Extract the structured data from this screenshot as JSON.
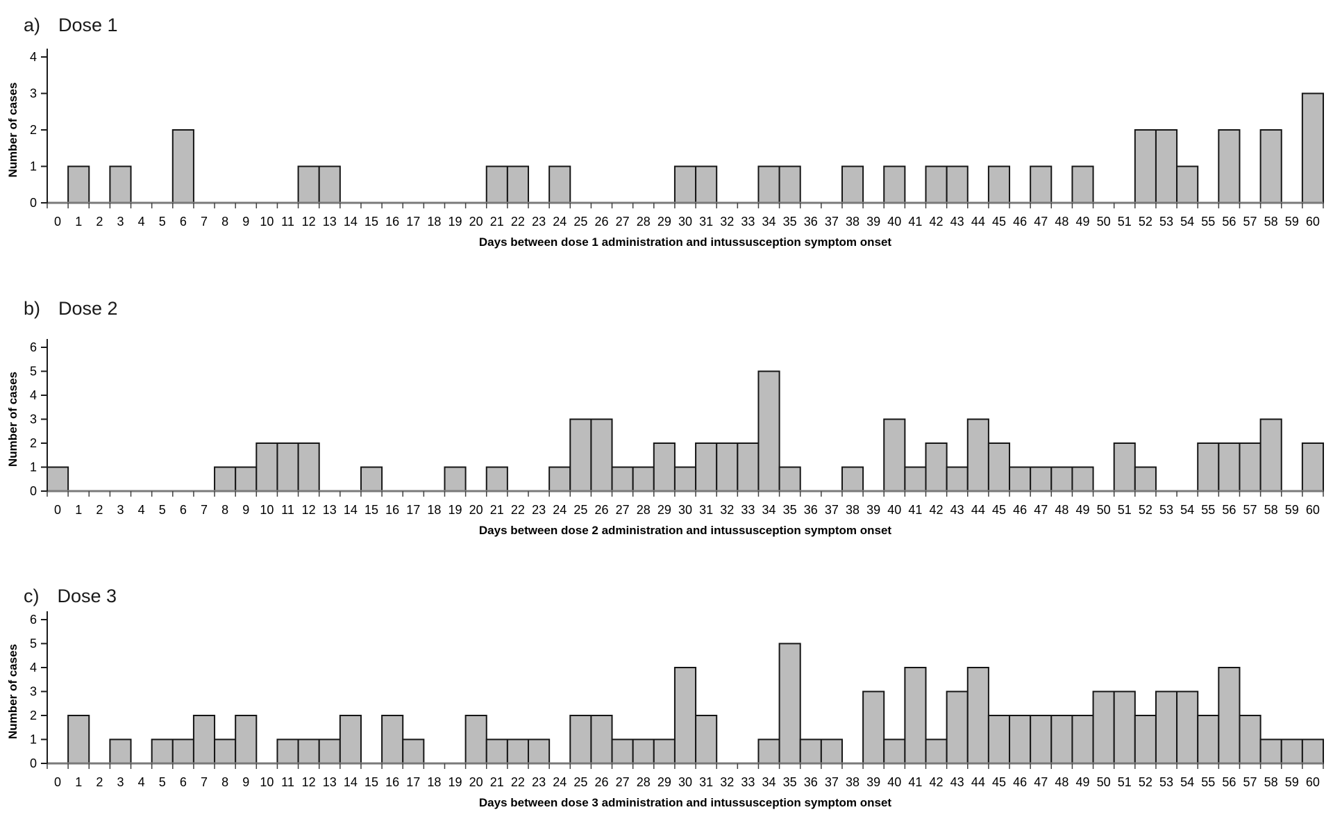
{
  "colors": {
    "bar_fill": "#bcbcbc",
    "bar_stroke": "#151515",
    "axis": "#1a1a1a",
    "baseline": "#7a7a7a",
    "x_tick": "#404040"
  },
  "chart_data": [
    {
      "type": "bar",
      "panel_label": "a)",
      "title": "Dose 1",
      "ylabel": "Number of cases",
      "xlabel": "Days between dose 1 administration and intussusception symptom onset",
      "ylim": [
        0,
        4
      ],
      "grid": false,
      "legend": "none",
      "categories": [
        0,
        1,
        2,
        3,
        4,
        5,
        6,
        7,
        8,
        9,
        10,
        11,
        12,
        13,
        14,
        15,
        16,
        17,
        18,
        19,
        20,
        21,
        22,
        23,
        24,
        25,
        26,
        27,
        28,
        29,
        30,
        31,
        32,
        33,
        34,
        35,
        36,
        37,
        38,
        39,
        40,
        41,
        42,
        43,
        44,
        45,
        46,
        47,
        48,
        49,
        50,
        51,
        52,
        53,
        54,
        55,
        56,
        57,
        58,
        59,
        60
      ],
      "values": [
        0,
        1,
        0,
        1,
        0,
        0,
        2,
        0,
        0,
        0,
        0,
        0,
        1,
        1,
        0,
        0,
        0,
        0,
        0,
        0,
        0,
        1,
        1,
        0,
        1,
        0,
        0,
        0,
        0,
        0,
        1,
        1,
        0,
        0,
        1,
        1,
        0,
        0,
        1,
        0,
        1,
        0,
        1,
        1,
        0,
        1,
        0,
        1,
        0,
        1,
        0,
        0,
        2,
        2,
        1,
        0,
        2,
        0,
        2,
        0,
        3
      ]
    },
    {
      "type": "bar",
      "panel_label": "b)",
      "title": "Dose 2",
      "ylabel": "Number of cases",
      "xlabel": "Days between dose 2 administration and intussusception symptom onset",
      "ylim": [
        0,
        6
      ],
      "grid": false,
      "legend": "none",
      "categories": [
        0,
        1,
        2,
        3,
        4,
        5,
        6,
        7,
        8,
        9,
        10,
        11,
        12,
        13,
        14,
        15,
        16,
        17,
        18,
        19,
        20,
        21,
        22,
        23,
        24,
        25,
        26,
        27,
        28,
        29,
        30,
        31,
        32,
        33,
        34,
        35,
        36,
        37,
        38,
        39,
        40,
        41,
        42,
        43,
        44,
        45,
        46,
        47,
        48,
        49,
        50,
        51,
        52,
        53,
        54,
        55,
        56,
        57,
        58,
        59,
        60
      ],
      "values": [
        1,
        0,
        0,
        0,
        0,
        0,
        0,
        0,
        1,
        1,
        2,
        2,
        2,
        0,
        0,
        1,
        0,
        0,
        0,
        1,
        0,
        1,
        0,
        0,
        1,
        3,
        3,
        1,
        1,
        2,
        1,
        2,
        2,
        2,
        5,
        1,
        0,
        0,
        1,
        0,
        3,
        1,
        2,
        1,
        3,
        2,
        1,
        1,
        1,
        1,
        0,
        2,
        1,
        0,
        0,
        2,
        2,
        2,
        3,
        0,
        2
      ]
    },
    {
      "type": "bar",
      "panel_label": "c)",
      "title": "Dose 3",
      "ylabel": "Number of cases",
      "xlabel": "Days between dose 3 administration and intussusception symptom onset",
      "ylim": [
        0,
        6
      ],
      "grid": false,
      "legend": "none",
      "categories": [
        0,
        1,
        2,
        3,
        4,
        5,
        6,
        7,
        8,
        9,
        10,
        11,
        12,
        13,
        14,
        15,
        16,
        17,
        18,
        19,
        20,
        21,
        22,
        23,
        24,
        25,
        26,
        27,
        28,
        29,
        30,
        31,
        32,
        33,
        34,
        35,
        36,
        37,
        38,
        39,
        40,
        41,
        42,
        43,
        44,
        45,
        46,
        47,
        48,
        49,
        50,
        51,
        52,
        53,
        54,
        55,
        56,
        57,
        58,
        59,
        60
      ],
      "values": [
        0,
        2,
        0,
        1,
        0,
        1,
        1,
        2,
        1,
        2,
        0,
        1,
        1,
        1,
        2,
        0,
        2,
        1,
        0,
        0,
        2,
        1,
        1,
        1,
        0,
        2,
        2,
        1,
        1,
        1,
        4,
        2,
        0,
        0,
        1,
        5,
        1,
        1,
        0,
        3,
        1,
        4,
        1,
        3,
        4,
        2,
        2,
        2,
        2,
        2,
        3,
        3,
        2,
        3,
        3,
        2,
        4,
        2,
        1,
        1,
        1
      ]
    }
  ]
}
